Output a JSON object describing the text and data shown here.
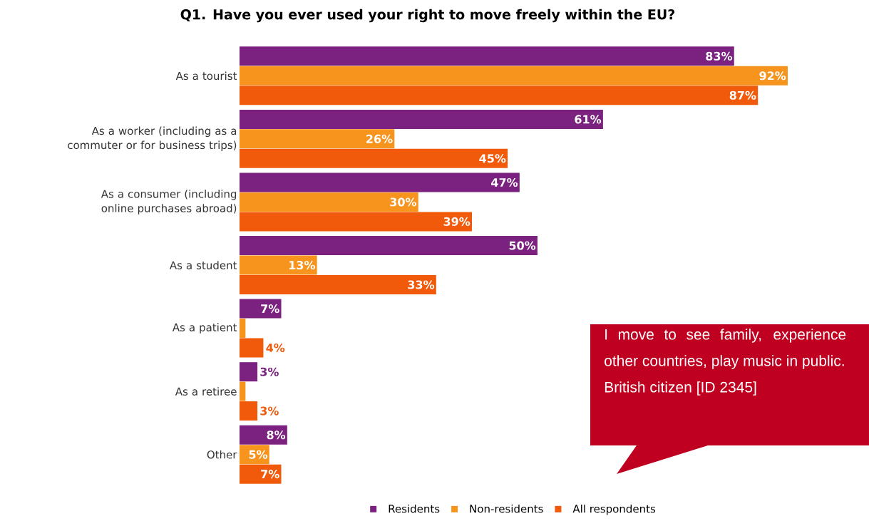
{
  "chart_data": {
    "type": "bar",
    "orientation": "horizontal",
    "legend": "bottom",
    "title": "Q1. Have you ever used your right to move freely within the EU?",
    "categories": [
      "As a tourist",
      "As a worker (including as a commuter or for business trips)",
      "As a consumer (including online purchases abroad)",
      "As a student",
      "As a patient",
      "As a retiree",
      "Other"
    ],
    "series": [
      {
        "name": "Residents",
        "color": "#7b2180",
        "values": [
          83,
          61,
          47,
          50,
          7,
          3,
          8
        ],
        "value_labels": [
          "83%",
          "61%",
          "47%",
          "50%",
          "7%",
          "3%",
          "8%"
        ]
      },
      {
        "name": "Non-residents",
        "color": "#f7941d",
        "values": [
          92,
          26,
          30,
          13,
          1,
          1,
          5
        ],
        "value_labels": [
          "92%",
          "26%",
          "30%",
          "13%",
          null,
          null,
          "5%"
        ]
      },
      {
        "name": "All respondents",
        "color": "#f05a0a",
        "values": [
          87,
          45,
          39,
          33,
          4,
          3,
          7
        ],
        "value_labels": [
          "87%",
          "45%",
          "39%",
          "33%",
          "4%",
          "3%",
          "7%"
        ]
      }
    ],
    "annotations": [
      "I move to see family, experience other countries, play music in public.",
      "British citizen [ID 2345]"
    ]
  }
}
